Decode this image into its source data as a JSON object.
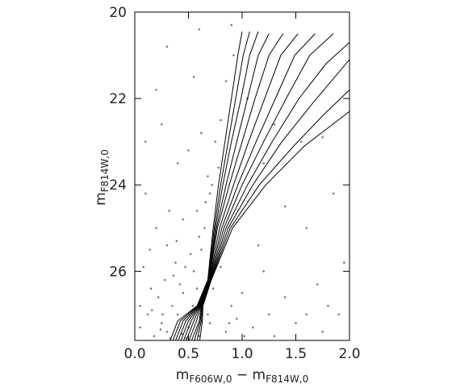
{
  "chart_data": {
    "type": "scatter",
    "xlabel": [
      {
        "text": "m",
        "sub": "F606W,0"
      },
      {
        "text": " − m",
        "sub": "F814W,0"
      }
    ],
    "ylabel": {
      "text": "m",
      "sub": "F814W,0"
    },
    "xlim": [
      0,
      2
    ],
    "ylim": [
      20,
      27.6
    ],
    "xticks": [
      {
        "value": 0,
        "label": "0.0"
      },
      0.5,
      {
        "value": 1,
        "label": "1.0"
      },
      1.5,
      {
        "value": 2,
        "label": "2.0"
      }
    ],
    "yticks": [
      20,
      22,
      24,
      26
    ],
    "points": {
      "color": "#7a7a7a",
      "x": [
        0.3,
        0.25,
        0.4,
        0.18,
        0.5,
        0.35,
        0.22,
        0.45,
        0.6,
        0.12,
        0.28,
        0.55,
        0.38,
        0.62,
        0.15,
        0.48,
        0.7,
        0.85,
        0.95,
        1.1,
        1.3,
        1.5,
        1.75,
        1.9,
        0.05,
        0.33,
        0.42,
        0.65,
        0.58,
        0.7,
        0.68,
        0.72,
        0.66,
        0.6,
        0.52,
        0.3,
        0.08,
        0.2,
        0.1,
        0.45,
        0.75,
        0.8,
        0.85,
        0.92,
        0.78,
        0.62,
        0.4,
        0.25,
        0.3,
        0.6,
        0.9,
        1.05,
        1.2,
        1.4,
        1.6,
        1.85,
        1.95,
        1.7,
        1.4,
        1.2,
        1.0,
        0.9,
        0.8,
        1.15,
        1.55,
        1.75,
        1.3,
        0.55,
        0.2,
        0.1,
        0.05,
        0.36,
        0.47,
        0.26,
        0.14,
        0.73,
        0.88,
        1.02,
        1.25,
        1.6,
        1.8,
        0.58,
        0.32,
        0.5,
        0.68,
        0.44,
        0.16,
        0.24,
        0.54,
        0.39
      ],
      "y": [
        27.4,
        27.2,
        27.0,
        27.5,
        27.3,
        26.8,
        26.6,
        26.5,
        27.5,
        27.0,
        26.2,
        26.0,
        25.8,
        25.5,
        26.4,
        27.55,
        27.2,
        27.4,
        27.1,
        27.3,
        27.5,
        27.2,
        27.4,
        27.0,
        27.3,
        27.55,
        26.3,
        25.0,
        24.6,
        24.2,
        23.8,
        24.0,
        24.4,
        25.2,
        25.6,
        25.4,
        25.9,
        25.0,
        24.2,
        24.8,
        23.0,
        22.5,
        21.6,
        21.0,
        23.6,
        22.8,
        23.5,
        22.6,
        20.8,
        20.4,
        20.3,
        22.0,
        23.5,
        24.5,
        25.0,
        24.2,
        25.8,
        26.3,
        26.6,
        26.0,
        26.5,
        26.8,
        25.9,
        25.4,
        23.0,
        22.9,
        22.6,
        21.5,
        21.8,
        23.0,
        26.8,
        26.1,
        25.9,
        27.0,
        25.5,
        26.4,
        27.2,
        27.5,
        27.0,
        27.0,
        26.8,
        26.4,
        24.6,
        23.2,
        27.0,
        27.45,
        26.9,
        27.35,
        26.8,
        25.3
      ]
    },
    "isochrones": [
      {
        "color": "#000000",
        "x": [
          0.33,
          0.4,
          0.58,
          0.68,
          0.73,
          0.78,
          0.84,
          0.9,
          0.96,
          1.0
        ],
        "y": [
          27.6,
          27.15,
          26.8,
          26.2,
          25.0,
          24.0,
          23.0,
          22.0,
          21.0,
          20.45
        ]
      },
      {
        "color": "#000000",
        "x": [
          0.355,
          0.425,
          0.585,
          0.683,
          0.74,
          0.8,
          0.87,
          0.94,
          1.01,
          1.07
        ],
        "y": [
          27.6,
          27.15,
          26.8,
          26.2,
          25.0,
          24.0,
          23.0,
          22.0,
          21.0,
          20.45
        ]
      },
      {
        "color": "#000000",
        "x": [
          0.38,
          0.45,
          0.59,
          0.686,
          0.75,
          0.82,
          0.9,
          0.99,
          1.07,
          1.15
        ],
        "y": [
          27.6,
          27.15,
          26.8,
          26.2,
          25.0,
          24.0,
          23.0,
          22.0,
          21.0,
          20.45
        ]
      },
      {
        "color": "#000000",
        "x": [
          0.405,
          0.475,
          0.595,
          0.689,
          0.76,
          0.85,
          0.95,
          1.05,
          1.15,
          1.25
        ],
        "y": [
          27.6,
          27.15,
          26.8,
          26.2,
          25.0,
          24.0,
          23.0,
          22.0,
          21.0,
          20.5
        ]
      },
      {
        "color": "#000000",
        "x": [
          0.43,
          0.5,
          0.6,
          0.692,
          0.77,
          0.88,
          1.0,
          1.12,
          1.25,
          1.38
        ],
        "y": [
          27.6,
          27.15,
          26.8,
          26.2,
          25.0,
          24.0,
          23.0,
          22.0,
          21.0,
          20.5
        ]
      },
      {
        "color": "#000000",
        "x": [
          0.455,
          0.525,
          0.605,
          0.695,
          0.79,
          0.92,
          1.06,
          1.21,
          1.36,
          1.52
        ],
        "y": [
          27.6,
          27.15,
          26.8,
          26.2,
          25.0,
          24.0,
          23.0,
          22.0,
          21.0,
          20.5
        ]
      },
      {
        "color": "#000000",
        "x": [
          0.48,
          0.55,
          0.61,
          0.698,
          0.81,
          0.96,
          1.13,
          1.31,
          1.49,
          1.68
        ],
        "y": [
          27.6,
          27.15,
          26.8,
          26.2,
          25.0,
          24.0,
          23.0,
          22.0,
          21.0,
          20.5
        ]
      },
      {
        "color": "#000000",
        "x": [
          0.505,
          0.575,
          0.615,
          0.701,
          0.83,
          1.0,
          1.2,
          1.41,
          1.63,
          1.85
        ],
        "y": [
          27.6,
          27.15,
          26.8,
          26.2,
          25.0,
          24.0,
          23.0,
          22.0,
          21.0,
          20.5
        ]
      },
      {
        "color": "#000000",
        "x": [
          0.53,
          0.6,
          0.62,
          0.704,
          0.85,
          1.05,
          1.28,
          1.53,
          1.78,
          2.0
        ],
        "y": [
          27.6,
          27.15,
          26.8,
          26.2,
          25.0,
          24.0,
          23.0,
          22.0,
          21.2,
          20.7
        ]
      },
      {
        "color": "#000000",
        "x": [
          0.555,
          0.61,
          0.625,
          0.707,
          0.87,
          1.1,
          1.37,
          1.66,
          2.0
        ],
        "y": [
          27.6,
          27.15,
          26.8,
          26.2,
          25.0,
          24.0,
          23.0,
          22.1,
          21.1
        ]
      },
      {
        "color": "#000000",
        "x": [
          0.58,
          0.62,
          0.63,
          0.71,
          0.89,
          1.16,
          1.48,
          1.75,
          2.0
        ],
        "y": [
          27.6,
          27.15,
          26.8,
          26.2,
          25.0,
          24.0,
          23.1,
          22.4,
          21.8
        ]
      },
      {
        "color": "#000000",
        "x": [
          0.605,
          0.63,
          0.635,
          0.713,
          0.91,
          1.22,
          1.58,
          2.0
        ],
        "y": [
          27.6,
          27.15,
          26.8,
          26.2,
          25.0,
          24.0,
          23.1,
          22.3
        ]
      }
    ]
  }
}
